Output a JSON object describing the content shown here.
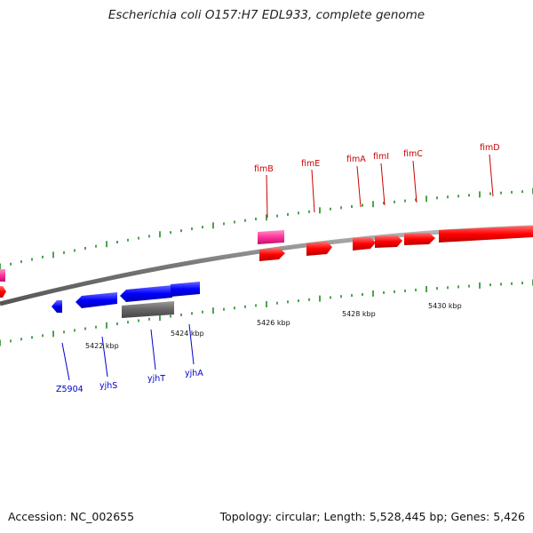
{
  "title": "Escherichia coli O157:H7 EDL933, complete genome",
  "footer": {
    "accession_label": "Accession:",
    "accession": "NC_002655",
    "topology_label": "Topology:",
    "topology": "circular",
    "length_label": "Length:",
    "length": "5,528,445 bp",
    "genes_label": "Genes:",
    "genes": "5,426"
  },
  "colors": {
    "forward": "#ff0000",
    "forward_label": "#cc0000",
    "reverse": "#0000ff",
    "reverse_label": "#0000cc",
    "pink": "#ff3399",
    "gray": "#666666",
    "ticks": "#228b22",
    "backbone": "#888888"
  },
  "scale_labels": [
    "5422 kbp",
    "5424 kbp",
    "5426 kbp",
    "5428 kbp",
    "5430 kbp"
  ],
  "genes": {
    "forward": [
      "fimB",
      "fimE",
      "fimA",
      "fimI",
      "fimC",
      "fimD"
    ],
    "reverse": [
      "Z5904",
      "yjhS",
      "yjhT",
      "yjhA"
    ]
  }
}
